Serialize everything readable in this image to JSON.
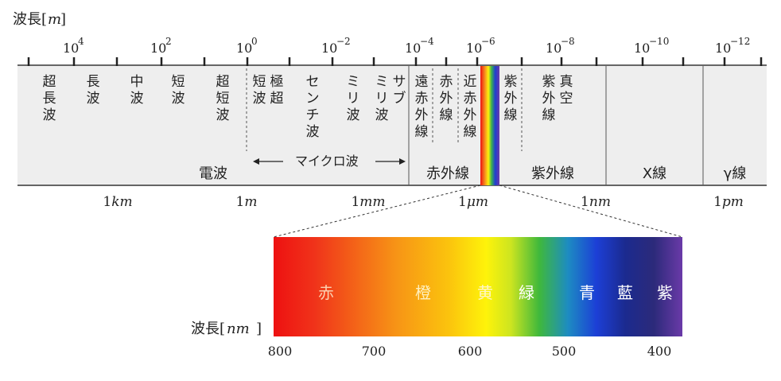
{
  "top_axis": {
    "label_prefix": "波長",
    "label_unit": "m",
    "ticks": [
      {
        "base": "10",
        "exp": "4"
      },
      {
        "base": "10",
        "exp": "2"
      },
      {
        "base": "10",
        "exp": "0"
      },
      {
        "base": "10",
        "exp": "−2"
      },
      {
        "base": "10",
        "exp": "−4"
      },
      {
        "base": "10",
        "exp": "−6"
      },
      {
        "base": "10",
        "exp": "−8"
      },
      {
        "base": "10",
        "exp": "−10"
      },
      {
        "base": "10",
        "exp": "−12"
      }
    ]
  },
  "bands": {
    "radio_sub": [
      {
        "id": "choucho",
        "text": "超長波"
      },
      {
        "id": "chou",
        "text": "長波"
      },
      {
        "id": "chu",
        "text": "中波"
      },
      {
        "id": "tan",
        "text": "短波"
      },
      {
        "id": "choutan",
        "text": "超短波"
      },
      {
        "id": "kyokutan_a",
        "text": "短波"
      },
      {
        "id": "kyokutan_b",
        "text": "極超"
      },
      {
        "id": "centi",
        "text": "センチ波"
      },
      {
        "id": "milli",
        "text": "ミリ波"
      },
      {
        "id": "submilli_a",
        "text": "ミリ波"
      },
      {
        "id": "submilli_b",
        "text": "サブ"
      }
    ],
    "ir_sub": [
      {
        "id": "far_ir",
        "text": "遠赤外線"
      },
      {
        "id": "mid_ir",
        "text": "赤外線"
      },
      {
        "id": "near_ir",
        "text": "近赤外線"
      }
    ],
    "uv_sub": [
      {
        "id": "uv",
        "text": "紫外線"
      },
      {
        "id": "vac_uv_a",
        "text": "紫外線"
      },
      {
        "id": "vac_uv_b",
        "text": "真空"
      }
    ],
    "microwave_label": "マイクロ波",
    "main": {
      "radio": "電波",
      "ir": "赤外線",
      "uv": "紫外線",
      "xray": "X線",
      "gamma": "γ線"
    }
  },
  "bottom_axis": [
    {
      "num": "1",
      "unit": "km"
    },
    {
      "num": "1",
      "unit": "m"
    },
    {
      "num": "1",
      "unit": "mm"
    },
    {
      "num": "1",
      "unit": "μm"
    },
    {
      "num": "1",
      "unit": "nm"
    },
    {
      "num": "1",
      "unit": "pm"
    }
  ],
  "visible": {
    "colors": [
      "赤",
      "橙",
      "黄",
      "緑",
      "青",
      "藍",
      "紫"
    ],
    "axis_prefix": "波長",
    "axis_unit": "nm",
    "ticks": [
      "800",
      "700",
      "600",
      "500",
      "400"
    ]
  }
}
